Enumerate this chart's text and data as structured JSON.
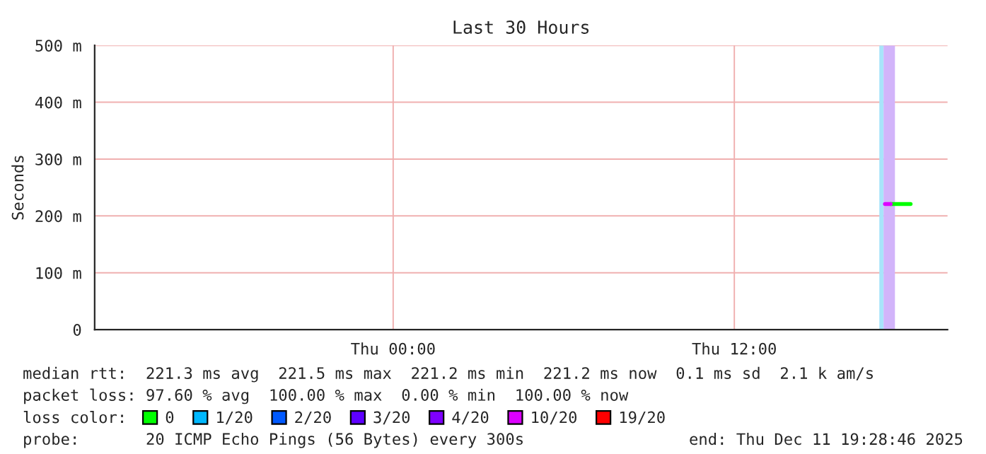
{
  "chart_data": {
    "type": "line",
    "title": "Last 30 Hours",
    "ylabel": "Seconds",
    "x": [
      "2025-12-11T17:18",
      "2025-12-11T17:24",
      "2025-12-11T17:30",
      "2025-12-11T17:36",
      "2025-12-11T17:48",
      "2025-12-11T18:00",
      "2025-12-11T18:12"
    ],
    "series": [
      {
        "name": "0",
        "color": "#00ff00",
        "values": [
          null,
          null,
          221,
          221,
          221,
          221,
          221
        ]
      },
      {
        "name": "1/20",
        "color": "#00b8ff",
        "values": [
          null,
          null,
          null,
          null,
          null,
          null,
          null
        ]
      },
      {
        "name": "2/20",
        "color": "#0059ff",
        "values": [
          null,
          null,
          null,
          null,
          null,
          null,
          null
        ]
      },
      {
        "name": "3/20",
        "color": "#5e00ff",
        "values": [
          null,
          null,
          null,
          null,
          null,
          null,
          null
        ]
      },
      {
        "name": "4/20",
        "color": "#7e00ff",
        "values": [
          null,
          null,
          null,
          null,
          null,
          null,
          null
        ]
      },
      {
        "name": "10/20",
        "color": "#dd00ff",
        "values": [
          221,
          221,
          221,
          null,
          null,
          null,
          null
        ]
      },
      {
        "name": "19/20",
        "color": "#ff0000",
        "values": [
          null,
          null,
          null,
          null,
          null,
          null,
          null
        ]
      }
    ],
    "bands": [
      {
        "axis": "x",
        "from": "2025-12-11T17:06",
        "to": "2025-12-11T17:15",
        "color": "#a8e4fa"
      },
      {
        "axis": "x",
        "from": "2025-12-11T17:15",
        "to": "2025-12-11T17:39",
        "color": "#d2b4fa"
      }
    ],
    "xlim": [
      "2025-12-10T13:30",
      "2025-12-11T19:30"
    ],
    "xticks": [
      {
        "value": "2025-12-11T00:00",
        "label": "Thu 00:00"
      },
      {
        "value": "2025-12-11T12:00",
        "label": "Thu 12:00"
      }
    ],
    "ylim": [
      0,
      500
    ],
    "yticks": [
      0,
      {
        "value": 100,
        "label": "100 m"
      },
      {
        "value": 200,
        "label": "200 m"
      },
      {
        "value": 300,
        "label": "300 m"
      },
      {
        "value": 400,
        "label": "400 m"
      },
      {
        "value": 500,
        "label": "500 m"
      }
    ],
    "grid": true,
    "legend": "bottom",
    "legend_title": "loss color:",
    "annotations": [
      "median rtt:  221.3 ms avg  221.5 ms max  221.2 ms min  221.2 ms now  0.1 ms sd  2.1 k am/s",
      "packet loss: 97.60 % avg  100.00 % max  0.00 % min  100.00 % now",
      "probe:       20 ICMP Echo Pings (56 Bytes) every 300s",
      "end: Thu Dec 11 19:28:46 2025"
    ]
  }
}
